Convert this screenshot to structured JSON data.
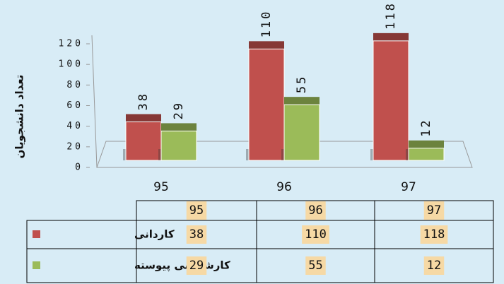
{
  "chart_data": {
    "type": "bar",
    "y_label": "تعداد دانشجویان",
    "categories": [
      "95",
      "96",
      "97"
    ],
    "series": [
      {
        "name": "کاردانی",
        "color": "#c0504d",
        "values": [
          38,
          110,
          118
        ]
      },
      {
        "name": "کارشناسی پیوسته",
        "color": "#9bbb59",
        "values": [
          29,
          55,
          12
        ]
      }
    ],
    "ylim": [
      0,
      120
    ],
    "yticks": [
      0,
      20,
      40,
      60,
      80,
      100,
      120
    ],
    "data_table": true
  }
}
